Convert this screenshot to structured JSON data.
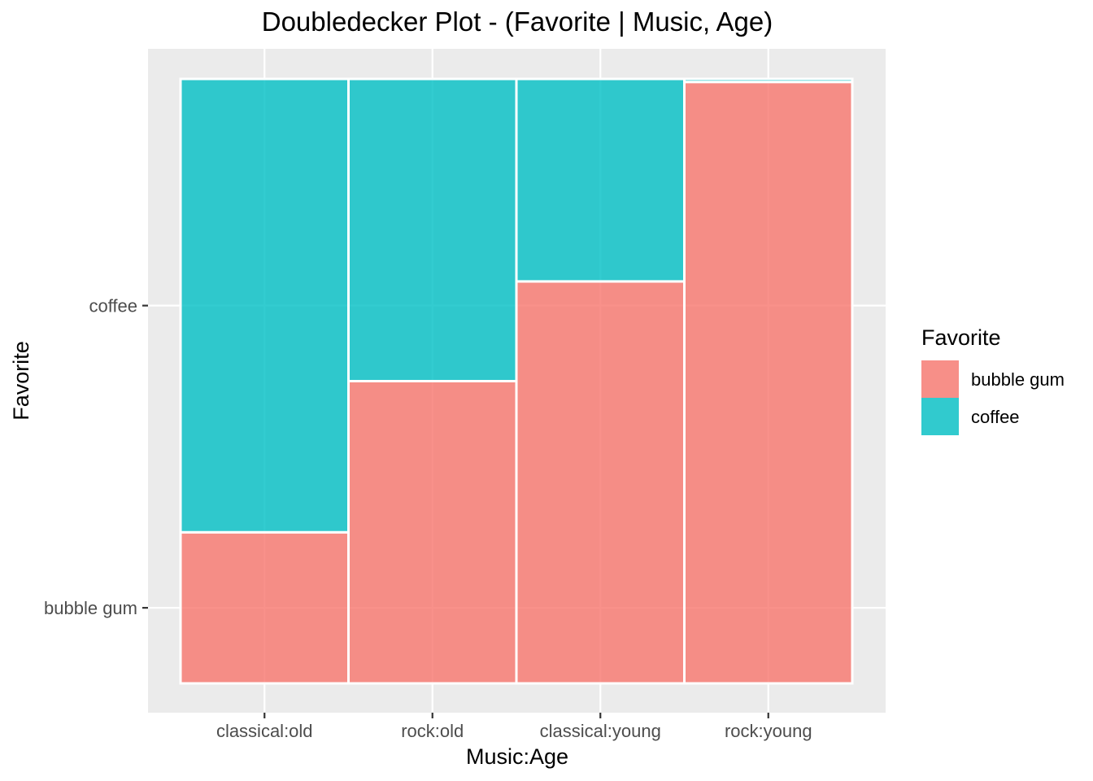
{
  "chart_data": {
    "type": "bar",
    "subtype": "doubledecker",
    "title": "Doubledecker Plot - (Favorite | Music, Age)",
    "xlabel": "Music:Age",
    "ylabel": "Favorite",
    "categories": [
      "classical:old",
      "rock:old",
      "classical:young",
      "rock:young"
    ],
    "column_widths": [
      0.25,
      0.25,
      0.25,
      0.25
    ],
    "y_tick_labels": [
      "bubble gum",
      "coffee"
    ],
    "series": [
      {
        "name": "bubble gum",
        "color": "#F8766D",
        "values": [
          0.25,
          0.5,
          0.665,
          0.995
        ]
      },
      {
        "name": "coffee",
        "color": "#00BFC4",
        "values": [
          0.75,
          0.5,
          0.335,
          0.005
        ]
      }
    ],
    "ylim": [
      0,
      1
    ],
    "grid": true,
    "panel_background": "#EBEBEB",
    "legend": {
      "title": "Favorite",
      "position": "right",
      "entries": [
        "bubble gum",
        "coffee"
      ]
    }
  }
}
